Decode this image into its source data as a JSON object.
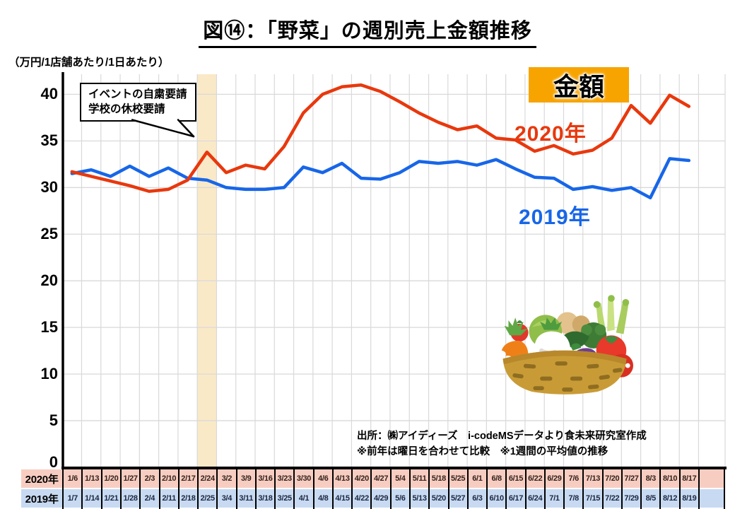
{
  "page": {
    "title": "図⑭：「野菜」の週別売上金額推移"
  },
  "chart": {
    "unit_label": "（万円/1店舗あたり/1日あたり）",
    "legend_label": "金額",
    "series_label_2020": "2020年",
    "series_label_2019": "2019年",
    "callout": {
      "line1": "イベントの自粛要請",
      "line2": "学校の休校要請"
    },
    "source_line1": "出所：㈱アイディーズ　i-codeMSデータより食未来研究室作成",
    "source_line2": "※前年は曜日を合わせて比較　※1週間の平均値の推移",
    "colors": {
      "line_2020": "#e8380d",
      "line_2019": "#1766e8",
      "legend_bg": "#f7a400",
      "highlight_band": "#fae9c7",
      "row_2020_bg": "#f8cdc1",
      "row_2019_bg": "#c8daf2",
      "grid": "#d9d9d9"
    }
  },
  "table": {
    "row_labels": [
      "2020年",
      "2019年"
    ]
  },
  "chart_data": {
    "type": "line",
    "title": "図⑭：「野菜」の週別売上金額推移",
    "ylabel": "（万円/1店舗あたり/1日あたり）",
    "ylim": [
      0,
      42.2
    ],
    "yticks": [
      0,
      5,
      10,
      15,
      20,
      25,
      30,
      35,
      40
    ],
    "grid": true,
    "legend_position": "top-right",
    "highlight_band_index": 7,
    "annotation": [
      "イベントの自粛要請",
      "学校の休校要請"
    ],
    "x_labels_2020": [
      "1/6",
      "1/13",
      "1/20",
      "1/27",
      "2/3",
      "2/10",
      "2/17",
      "2/24",
      "3/2",
      "3/9",
      "3/16",
      "3/23",
      "3/30",
      "4/6",
      "4/13",
      "4/20",
      "4/27",
      "5/4",
      "5/11",
      "5/18",
      "5/25",
      "6/1",
      "6/8",
      "6/15",
      "6/22",
      "6/29",
      "7/6",
      "7/13",
      "7/20",
      "7/27",
      "8/3",
      "8/10",
      "8/17"
    ],
    "x_labels_2019": [
      "1/7",
      "1/14",
      "1/21",
      "1/28",
      "2/4",
      "2/11",
      "2/18",
      "2/25",
      "3/4",
      "3/11",
      "3/18",
      "3/25",
      "4/1",
      "4/8",
      "4/15",
      "4/22",
      "4/29",
      "5/6",
      "5/13",
      "5/20",
      "5/27",
      "6/3",
      "6/10",
      "6/17",
      "6/24",
      "7/1",
      "7/8",
      "7/15",
      "7/22",
      "7/29",
      "8/5",
      "8/12",
      "8/19"
    ],
    "series": [
      {
        "name": "2020年",
        "color": "#e8380d",
        "values": [
          31.7,
          31.2,
          30.7,
          30.2,
          29.6,
          29.8,
          30.8,
          33.8,
          31.6,
          32.4,
          32.0,
          34.4,
          38.0,
          40.0,
          40.8,
          41.0,
          40.3,
          39.2,
          38.0,
          37.0,
          36.2,
          36.6,
          35.3,
          35.1,
          33.9,
          34.5,
          33.6,
          34.0,
          35.3,
          38.8,
          36.9,
          39.9,
          38.7
        ]
      },
      {
        "name": "2019年",
        "color": "#1766e8",
        "values": [
          31.5,
          31.9,
          31.2,
          32.3,
          31.2,
          32.1,
          31.0,
          30.8,
          30.0,
          29.8,
          29.8,
          30.0,
          32.2,
          31.6,
          32.6,
          31.0,
          30.9,
          31.6,
          32.8,
          32.6,
          32.8,
          32.4,
          33.0,
          32.0,
          31.1,
          31.0,
          29.8,
          30.1,
          29.7,
          30.0,
          28.9,
          33.1,
          32.9
        ]
      }
    ]
  }
}
